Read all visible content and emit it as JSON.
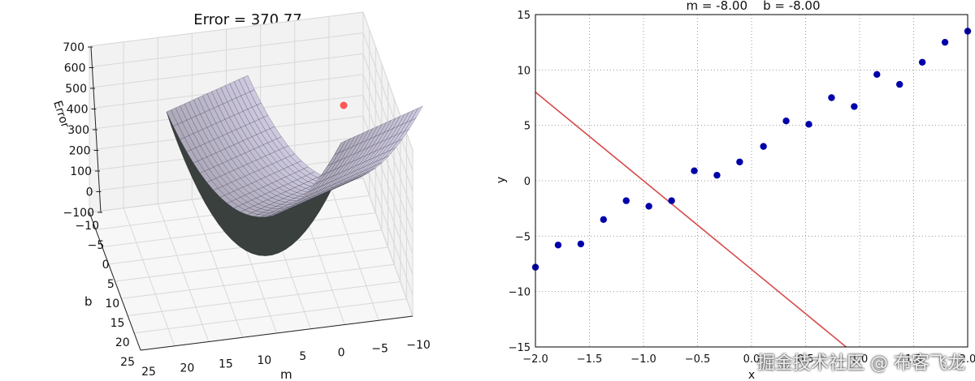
{
  "chart_data": [
    {
      "type": "surface",
      "title": "Error = 370.77",
      "xlabel": "m",
      "ylabel": "b",
      "zlabel": "Error",
      "x_ticks": [
        "25",
        "20",
        "15",
        "10",
        "5",
        "0",
        "−5",
        "−10"
      ],
      "y_ticks": [
        "−10",
        "−5",
        "0",
        "5",
        "10",
        "15",
        "20",
        "25"
      ],
      "z_ticks": [
        "−100",
        "0",
        "100",
        "200",
        "300",
        "400",
        "500",
        "600",
        "700"
      ],
      "zlim": [
        -100,
        700
      ],
      "grid": true,
      "surface_color": "#b9b6d6",
      "current_point": {
        "m": -8.0,
        "b": -8.0,
        "error": 370.77,
        "color": "#ff3b3b"
      }
    },
    {
      "type": "scatter",
      "title": "m = -8.00    b = -8.00",
      "xlabel": "x",
      "ylabel": "y",
      "xlim": [
        -2.0,
        2.0
      ],
      "ylim": [
        -15,
        15
      ],
      "x_ticks": [
        "−2.0",
        "−1.5",
        "−1.0",
        "−0.5",
        "0.0",
        "0.5",
        "1.0",
        "1.5",
        "2.0"
      ],
      "y_ticks": [
        "−15",
        "−10",
        "−5",
        "0",
        "5",
        "10",
        "15"
      ],
      "grid": true,
      "points": {
        "color": "#0000aa",
        "x": [
          -2.0,
          -1.79,
          -1.58,
          -1.37,
          -1.16,
          -0.95,
          -0.74,
          -0.53,
          -0.32,
          -0.11,
          0.11,
          0.32,
          0.53,
          0.74,
          0.95,
          1.16,
          1.37,
          1.58,
          1.79,
          2.0
        ],
        "y": [
          -7.8,
          -5.8,
          -5.7,
          -3.5,
          -1.8,
          -2.3,
          -1.8,
          0.9,
          0.5,
          1.7,
          3.1,
          5.4,
          5.1,
          7.5,
          6.7,
          9.6,
          8.7,
          10.7,
          12.5,
          13.5
        ]
      },
      "line": {
        "color": "#d84a4a",
        "m": -8.0,
        "b": -8.0
      }
    }
  ],
  "watermark": "掘金技术社区 @ 布客飞龙"
}
